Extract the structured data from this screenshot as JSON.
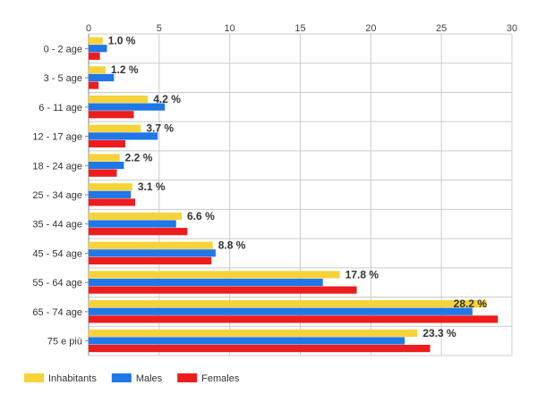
{
  "chart_data": {
    "type": "bar",
    "orientation": "horizontal",
    "categories": [
      "0 - 2 age",
      "3 - 5 age",
      "6 - 11 age",
      "12 - 17 age",
      "18 - 24 age",
      "25 - 34 age",
      "35 - 44 age",
      "45 - 54 age",
      "55 - 64 age",
      "65 - 74 age",
      "75 e più"
    ],
    "series": [
      {
        "name": "Inhabitants",
        "color": "#f7d33a",
        "values": [
          1.0,
          1.2,
          4.2,
          3.7,
          2.2,
          3.1,
          6.6,
          8.8,
          17.8,
          28.2,
          23.3
        ]
      },
      {
        "name": "Males",
        "color": "#1f77e8",
        "values": [
          1.3,
          1.8,
          5.4,
          4.9,
          2.5,
          3.0,
          6.2,
          9.0,
          16.6,
          27.2,
          22.4
        ]
      },
      {
        "name": "Females",
        "color": "#ee1c1c",
        "values": [
          0.8,
          0.7,
          3.2,
          2.6,
          2.0,
          3.3,
          7.0,
          8.7,
          19.0,
          29.0,
          24.2
        ]
      }
    ],
    "data_labels": [
      "1.0 %",
      "1.2 %",
      "4.2 %",
      "3.7 %",
      "2.2 %",
      "3.1 %",
      "6.6 %",
      "8.8 %",
      "17.8 %",
      "28.2 %",
      "23.3 %"
    ],
    "x_ticks": [
      "0",
      "5",
      "10",
      "15",
      "20",
      "25",
      "30"
    ],
    "xlim": [
      0,
      30
    ],
    "grid": true,
    "legend_position": "bottom-left",
    "title": "",
    "xlabel": "",
    "ylabel": ""
  }
}
